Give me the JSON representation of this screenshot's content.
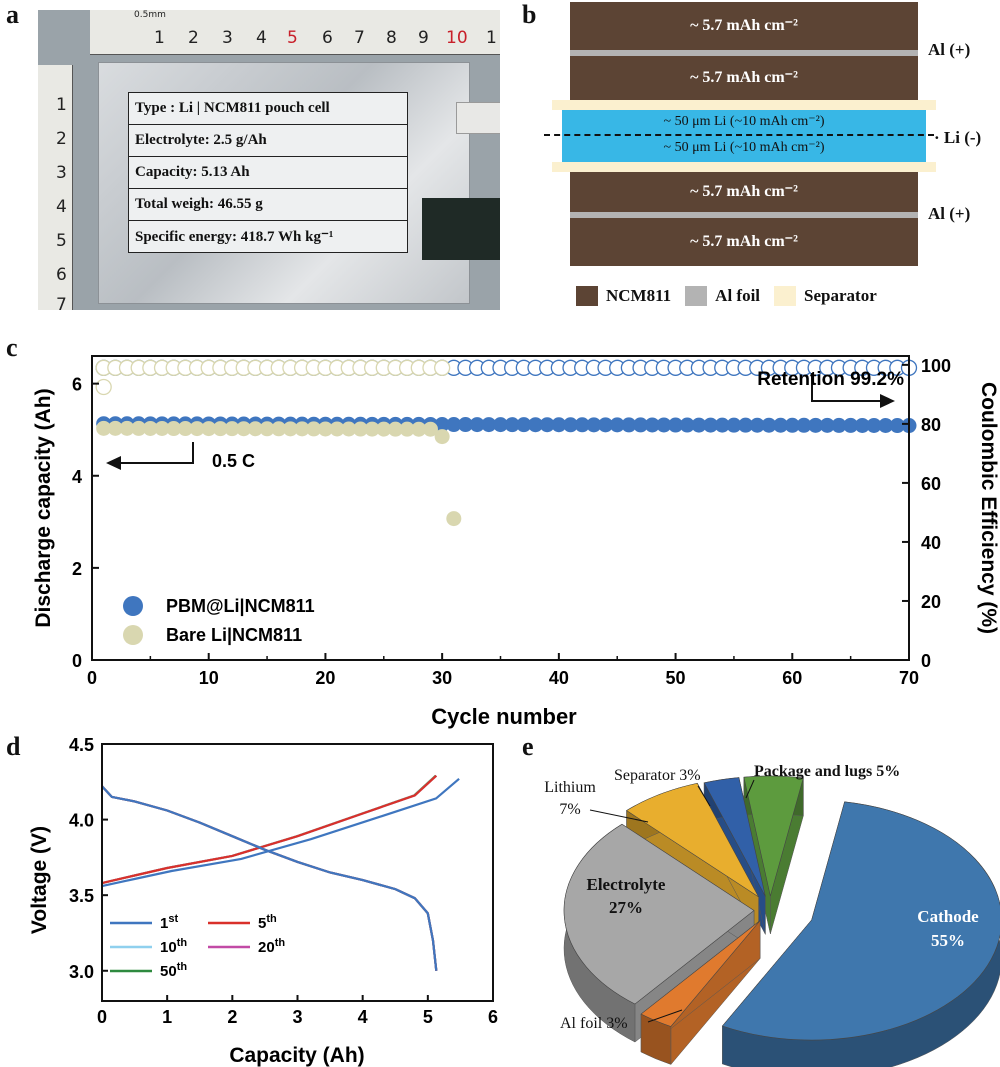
{
  "panels": {
    "a": "a",
    "b": "b",
    "c": "c",
    "d": "d",
    "e": "e"
  },
  "photo": {
    "ruler_top_numbers": [
      "1",
      "2",
      "3",
      "4",
      "5",
      "6",
      "7",
      "8",
      "9",
      "10",
      "1",
      "2"
    ],
    "ruler_top_red": "5",
    "ruler_left_numbers": [
      "1",
      "2",
      "3",
      "4",
      "5",
      "6",
      "7"
    ],
    "ruler_unit": "0.5mm",
    "table": [
      "Type : Li | NCM811  pouch cell",
      "Electrolyte: 2.5 g/Ah",
      "Capacity: 5.13 Ah",
      "Total weigh: 46.55 g",
      "Specific energy: 418.7 Wh kg⁻¹"
    ]
  },
  "cell_structure": {
    "cathode_label": "~ 5.7 mAh cm⁻²",
    "lithium_label": "~ 50 μm Li (~10 mAh cm⁻²)",
    "al_label": "Al (+)",
    "li_label": "· Li (-)",
    "legend": [
      "NCM811",
      "Al foil",
      "Separator"
    ],
    "colors": {
      "ncm811": "#5c4434",
      "al_foil": "#b3b3b3",
      "separator": "#fbf0cf",
      "lithium": "#38b7e6"
    }
  },
  "chart_data": [
    {
      "type": "scatter",
      "panel": "c",
      "xlabel": "Cycle number",
      "ylabel": "Discharge capacity (Ah)",
      "y2label": "Coulombic Efficiency (%)",
      "xlim": [
        0,
        70
      ],
      "ylim": [
        0,
        6.6
      ],
      "y2lim": [
        0,
        103
      ],
      "xticks": [
        0,
        10,
        20,
        30,
        40,
        50,
        60,
        70
      ],
      "yticks": [
        0,
        2,
        4,
        6
      ],
      "y2ticks": [
        0,
        20,
        40,
        60,
        80,
        100
      ],
      "annotations": {
        "rate": "0.5 C",
        "retention": "Retention 99.2%"
      },
      "series": [
        {
          "name": "PBM@Li|NCM811",
          "color": "#3f76bf",
          "capacity": {
            "x_start": 1,
            "x_end": 70,
            "y_start": 5.13,
            "y_end": 5.09
          },
          "efficiency": {
            "x_start": 1,
            "x_end": 70,
            "y": 99.0
          }
        },
        {
          "name": "Bare Li|NCM811",
          "color": "#d9d7b0",
          "capacity": {
            "x_start": 1,
            "x_end": 29,
            "y_start": 5.03,
            "y_end": 5.01,
            "extra": [
              [
                30,
                4.85
              ],
              [
                31,
                3.07
              ]
            ]
          },
          "efficiency": {
            "x_start": 1,
            "x_end": 30,
            "y": 99.0,
            "extra": [
              [
                1,
                92.5
              ]
            ]
          }
        }
      ]
    },
    {
      "type": "line",
      "panel": "d",
      "xlabel": "Capacity (Ah)",
      "ylabel": "Voltage (V)",
      "xlim": [
        0,
        6
      ],
      "ylim": [
        2.8,
        4.5
      ],
      "xticks": [
        0,
        1,
        2,
        3,
        4,
        5,
        6
      ],
      "yticks": [
        "3.0",
        "3.5",
        "4.0",
        "4.5"
      ],
      "series": [
        {
          "name": "1",
          "sup": "st",
          "color": "#3f76bf",
          "charge_end": 5.48
        },
        {
          "name": "5",
          "sup": "th",
          "color": "#d9302a",
          "charge_end": 5.13
        },
        {
          "name": "10",
          "sup": "th",
          "color": "#8fd0ee",
          "charge_end": 5.13
        },
        {
          "name": "20",
          "sup": "th",
          "color": "#c24aa6",
          "charge_end": 5.13
        },
        {
          "name": "50",
          "sup": "th",
          "color": "#2e8a3f",
          "charge_end": 5.12
        }
      ],
      "charge_curve": [
        [
          0,
          3.58
        ],
        [
          0.5,
          3.63
        ],
        [
          1,
          3.68
        ],
        [
          2,
          3.76
        ],
        [
          3,
          3.89
        ],
        [
          4,
          4.04
        ],
        [
          4.8,
          4.16
        ],
        [
          5.13,
          4.29
        ]
      ],
      "discharge_curve": [
        [
          0,
          4.22
        ],
        [
          0.15,
          4.15
        ],
        [
          0.5,
          4.12
        ],
        [
          1,
          4.06
        ],
        [
          1.5,
          3.98
        ],
        [
          2,
          3.89
        ],
        [
          2.5,
          3.8
        ],
        [
          3,
          3.72
        ],
        [
          3.5,
          3.65
        ],
        [
          4,
          3.6
        ],
        [
          4.5,
          3.54
        ],
        [
          4.8,
          3.48
        ],
        [
          5.0,
          3.38
        ],
        [
          5.08,
          3.2
        ],
        [
          5.13,
          3.0
        ]
      ]
    },
    {
      "type": "pie",
      "panel": "e",
      "slices": [
        {
          "label": "Cathode",
          "value": 55,
          "color": "#3f77ad"
        },
        {
          "label": "Al foil",
          "value": 3,
          "color": "#e07a2e"
        },
        {
          "label": "Electrolyte",
          "value": 27,
          "color": "#a7a7a7"
        },
        {
          "label": "Lithium",
          "value": 7,
          "color": "#e8ae2e"
        },
        {
          "label": "Separator",
          "value": 3,
          "color": "#3160a8"
        },
        {
          "label": "Package and lugs",
          "value": 5,
          "color": "#5d9b3e"
        }
      ],
      "labels": {
        "cathode": "Cathode",
        "cathode_pct": "55%",
        "electrolyte": "Electrolyte",
        "electrolyte_pct": "27%",
        "lithium": "Lithium",
        "lithium_pct": "7%",
        "separator": "Separator 3%",
        "package": "Package and lugs 5%",
        "alfoil": "Al foil 3%"
      }
    }
  ]
}
